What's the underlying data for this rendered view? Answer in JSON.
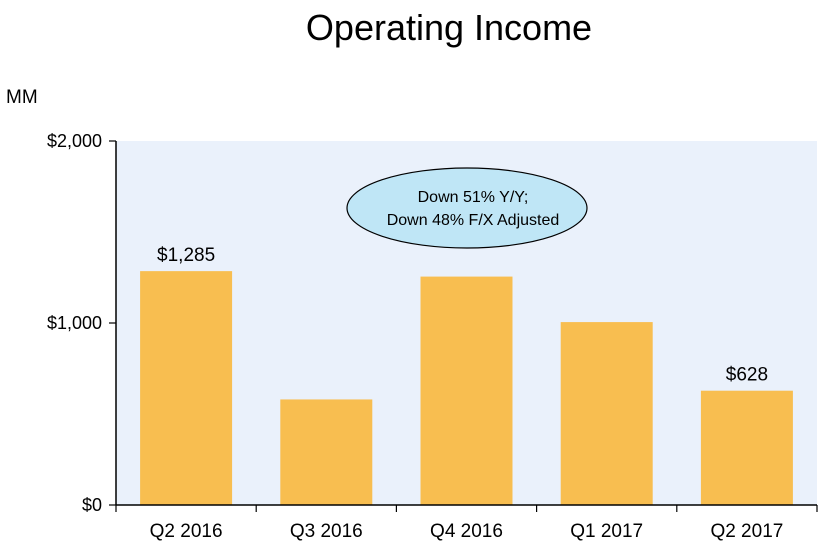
{
  "chart_data": {
    "type": "bar",
    "title": "Operating Income",
    "unit_label": "MM",
    "categories": [
      "Q2 2016",
      "Q3 2016",
      "Q4 2016",
      "Q1 2017",
      "Q2 2017"
    ],
    "values": [
      1285,
      580,
      1255,
      1005,
      628
    ],
    "data_labels": [
      "$1,285",
      "",
      "",
      "",
      "$628"
    ],
    "ylim": [
      0,
      2000
    ],
    "yticks": [
      {
        "value": 0,
        "label": "$0"
      },
      {
        "value": 1000,
        "label": "$1,000"
      },
      {
        "value": 2000,
        "label": "$2,000"
      }
    ],
    "annotation": {
      "line1": "Down 51% Y/Y;",
      "line2": "Down 48% F/X Adjusted"
    },
    "grid": false,
    "colors": {
      "bar": "#F8BE50",
      "plot_background": "#EAF1FB",
      "annotation_fill": "#BFE6F6",
      "axis": "#000000"
    }
  }
}
